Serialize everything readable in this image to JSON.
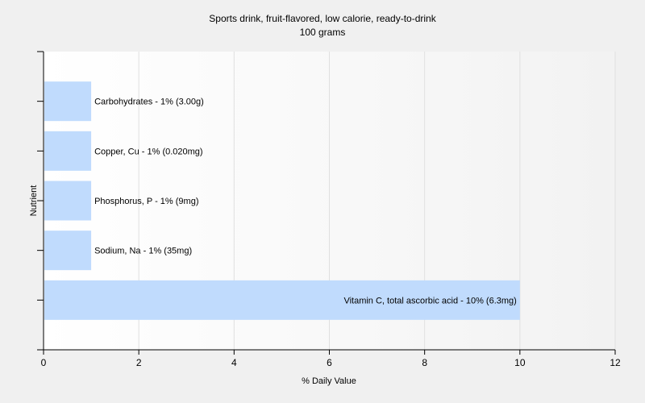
{
  "chart_data": {
    "type": "bar",
    "orientation": "horizontal",
    "title": "Sports drink, fruit-flavored, low calorie, ready-to-drink",
    "subtitle": "100 grams",
    "xlabel": "% Daily Value",
    "ylabel": "Nutrient",
    "xlim": [
      0,
      12
    ],
    "xticks": [
      "0",
      "2",
      "4",
      "6",
      "8",
      "10",
      "12"
    ],
    "grid": "vertical",
    "categories": [
      "Carbohydrates",
      "Copper, Cu",
      "Phosphorus, P",
      "Sodium, Na",
      "Vitamin C, total ascorbic acid"
    ],
    "values": [
      1,
      1,
      1,
      1,
      10
    ],
    "labels": [
      "Carbohydrates - 1% (3.00g)",
      "Copper, Cu - 1% (0.020mg)",
      "Phosphorus, P - 1% (9mg)",
      "Sodium, Na - 1% (35mg)",
      "Vitamin C, total ascorbic acid - 10% (6.3mg)"
    ],
    "colors": {
      "bar": "#c0dbfd",
      "background": "#f0f0f0",
      "plot_background": "#ffffff",
      "grid": "#e0e0e0",
      "axis": "#000000"
    }
  }
}
